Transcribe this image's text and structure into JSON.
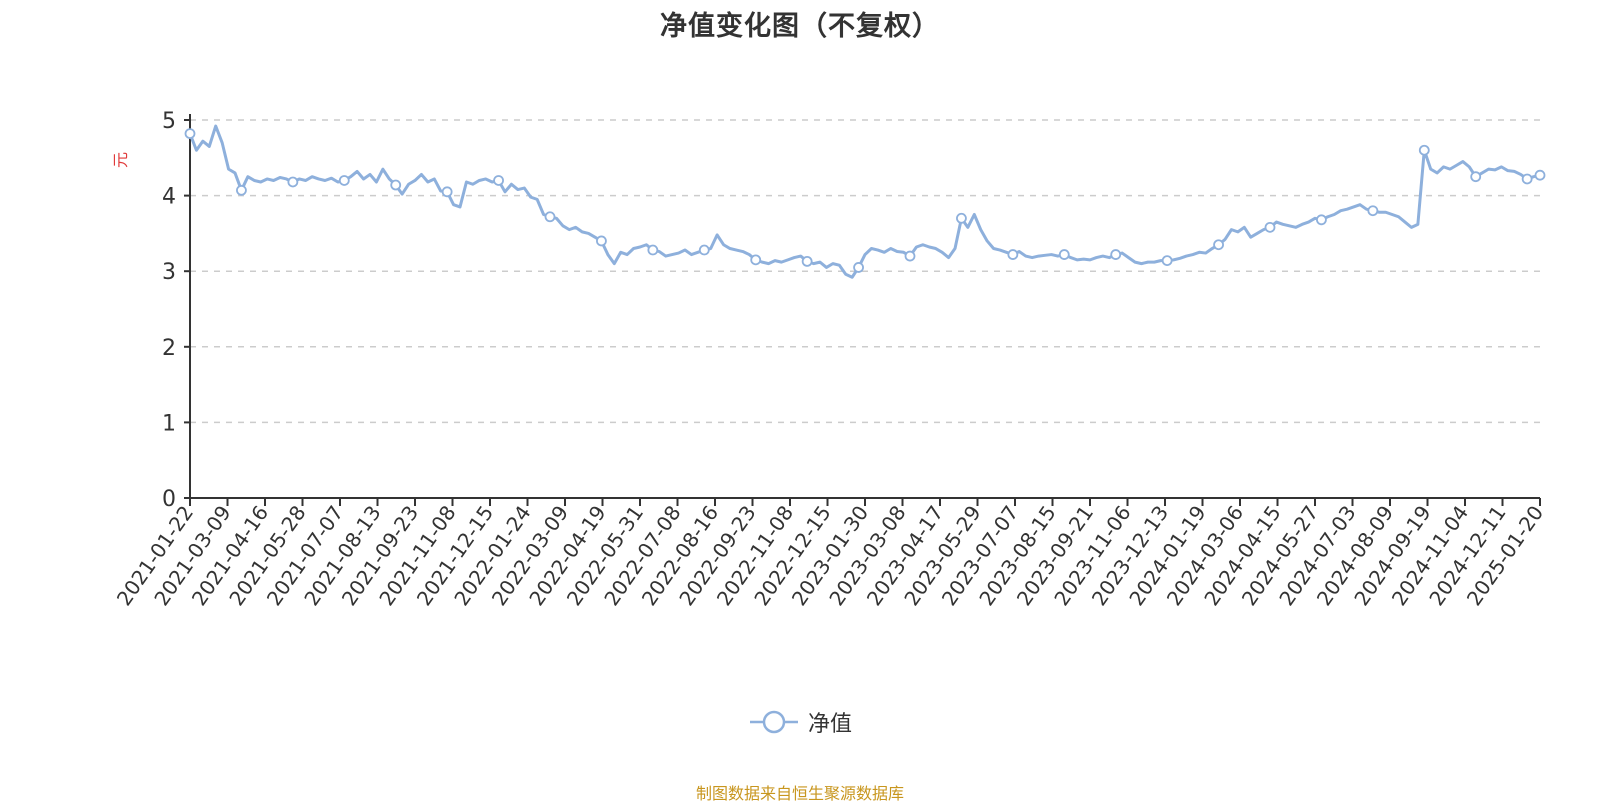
{
  "chart_data": {
    "type": "line",
    "title": "净值变化图（不复权）",
    "ylabel": "元",
    "ylim": [
      0,
      5
    ],
    "y_ticks": [
      0,
      1,
      2,
      3,
      4,
      5
    ],
    "grid": true,
    "legend_position": "bottom-center",
    "x_tick_labels": [
      "2021-01-22",
      "2021-03-09",
      "2021-04-16",
      "2021-05-28",
      "2021-07-07",
      "2021-08-13",
      "2021-09-23",
      "2021-11-08",
      "2021-12-15",
      "2022-01-24",
      "2022-03-09",
      "2022-04-19",
      "2022-05-31",
      "2022-07-08",
      "2022-08-16",
      "2022-09-23",
      "2022-11-08",
      "2022-12-15",
      "2023-01-30",
      "2023-03-08",
      "2023-04-17",
      "2023-05-29",
      "2023-07-07",
      "2023-08-15",
      "2023-09-21",
      "2023-11-06",
      "2023-12-13",
      "2024-01-19",
      "2024-03-06",
      "2024-04-15",
      "2024-05-27",
      "2024-07-03",
      "2024-08-09",
      "2024-09-19",
      "2024-11-04",
      "2024-12-11",
      "2025-01-20"
    ],
    "series": [
      {
        "name": "净值",
        "color": "#8eb0dc",
        "values": [
          4.82,
          4.6,
          4.72,
          4.65,
          4.92,
          4.7,
          4.35,
          4.3,
          4.07,
          4.25,
          4.2,
          4.18,
          4.22,
          4.2,
          4.24,
          4.22,
          4.18,
          4.22,
          4.2,
          4.25,
          4.22,
          4.2,
          4.23,
          4.18,
          4.2,
          4.25,
          4.32,
          4.22,
          4.28,
          4.18,
          4.35,
          4.22,
          4.14,
          4.02,
          4.15,
          4.2,
          4.28,
          4.18,
          4.22,
          4.06,
          4.05,
          3.88,
          3.85,
          4.18,
          4.15,
          4.2,
          4.22,
          4.18,
          4.2,
          4.05,
          4.15,
          4.08,
          4.1,
          3.98,
          3.95,
          3.75,
          3.72,
          3.7,
          3.6,
          3.55,
          3.58,
          3.52,
          3.5,
          3.45,
          3.4,
          3.22,
          3.1,
          3.25,
          3.22,
          3.3,
          3.32,
          3.35,
          3.28,
          3.26,
          3.2,
          3.22,
          3.24,
          3.28,
          3.22,
          3.25,
          3.28,
          3.3,
          3.48,
          3.35,
          3.3,
          3.28,
          3.26,
          3.22,
          3.15,
          3.12,
          3.1,
          3.14,
          3.12,
          3.15,
          3.18,
          3.2,
          3.13,
          3.1,
          3.12,
          3.05,
          3.1,
          3.08,
          2.96,
          2.92,
          3.05,
          3.22,
          3.3,
          3.28,
          3.25,
          3.3,
          3.26,
          3.25,
          3.2,
          3.32,
          3.35,
          3.32,
          3.3,
          3.25,
          3.18,
          3.3,
          3.7,
          3.58,
          3.75,
          3.55,
          3.4,
          3.3,
          3.28,
          3.25,
          3.22,
          3.26,
          3.2,
          3.18,
          3.2,
          3.21,
          3.22,
          3.2,
          3.22,
          3.18,
          3.15,
          3.16,
          3.15,
          3.18,
          3.2,
          3.18,
          3.22,
          3.24,
          3.18,
          3.12,
          3.1,
          3.12,
          3.12,
          3.14,
          3.14,
          3.15,
          3.17,
          3.2,
          3.22,
          3.25,
          3.24,
          3.3,
          3.35,
          3.42,
          3.55,
          3.52,
          3.58,
          3.45,
          3.5,
          3.55,
          3.58,
          3.65,
          3.62,
          3.6,
          3.58,
          3.62,
          3.65,
          3.7,
          3.68,
          3.72,
          3.75,
          3.8,
          3.82,
          3.85,
          3.88,
          3.82,
          3.8,
          3.78,
          3.78,
          3.75,
          3.72,
          3.65,
          3.58,
          3.62,
          4.6,
          4.35,
          4.3,
          4.38,
          4.35,
          4.4,
          4.45,
          4.38,
          4.25,
          4.3,
          4.35,
          4.34,
          4.38,
          4.33,
          4.32,
          4.28,
          4.22,
          4.25,
          4.27
        ]
      }
    ],
    "marker_indices": [
      0,
      8,
      16,
      24,
      32,
      40,
      48,
      56,
      64,
      72,
      80,
      88,
      96,
      104,
      112,
      120,
      128,
      136,
      144,
      152,
      160,
      168,
      176,
      184,
      192,
      200,
      208,
      216,
      224,
      232
    ]
  },
  "source_note": "制图数据来自恒生聚源数据库"
}
